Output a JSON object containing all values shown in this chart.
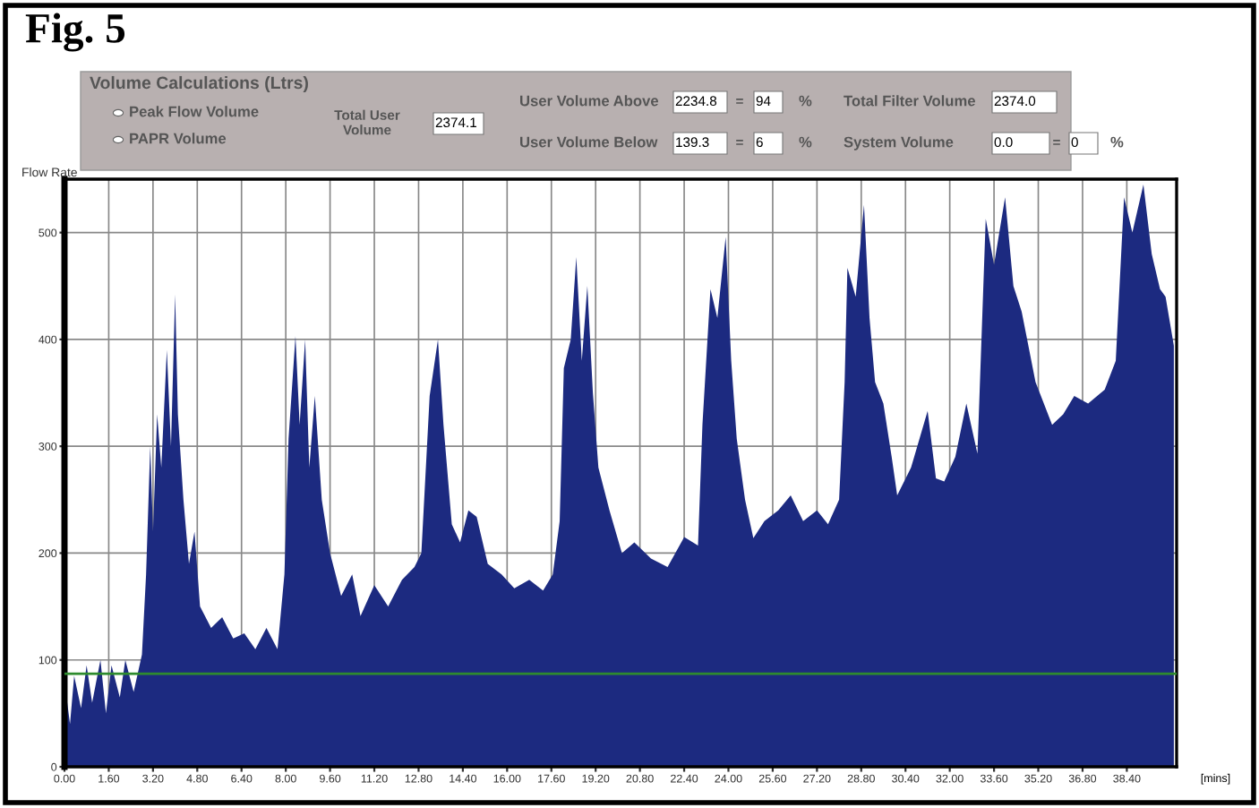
{
  "chart_data": {
    "type": "area",
    "title": "Fig. 5",
    "xlabel": "[mins]",
    "annotations": [
      "Flow Rate",
      "Volume Calculations (Ltrs)",
      "Peak Flow Volume",
      "PAPR Volume",
      "Total User Volume",
      "2374.1",
      "User Volume Above",
      "2234.8",
      "=",
      "94",
      "%",
      "User Volume Below",
      "139.3",
      "=",
      "6",
      "%",
      "Total Filter Volume",
      "2374.0",
      "System Volume",
      "0.0",
      "=",
      "0",
      "%"
    ],
    "series": [
      {
        "color": "#1c2a80",
        "x": [
          0.0,
          0.2,
          0.35,
          0.6,
          0.8,
          1.0,
          1.3,
          1.5,
          1.7,
          2.0,
          2.2,
          2.5,
          2.8,
          2.95,
          3.1,
          3.2,
          3.35,
          3.5,
          3.7,
          3.85,
          4.0,
          4.1,
          4.3,
          4.5,
          4.7,
          4.9,
          5.3,
          5.7,
          6.1,
          6.5,
          6.9,
          7.3,
          7.7,
          7.95,
          8.1,
          8.35,
          8.5,
          8.7,
          8.85,
          9.05,
          9.3,
          9.6,
          10.0,
          10.4,
          10.7,
          11.2,
          11.7,
          12.2,
          12.65,
          12.9,
          13.2,
          13.5,
          13.7,
          14.0,
          14.3,
          14.6,
          14.9,
          15.3,
          15.8,
          16.26,
          16.8,
          17.3,
          17.65,
          17.9,
          18.05,
          18.3,
          18.5,
          18.7,
          18.9,
          19.1,
          19.3,
          19.7,
          20.15,
          20.6,
          21.2,
          21.8,
          22.4,
          22.9,
          23.06,
          23.35,
          23.6,
          23.9,
          24.1,
          24.3,
          24.6,
          24.9,
          25.3,
          25.8,
          26.25,
          26.7,
          27.2,
          27.6,
          28.0,
          28.2,
          28.3,
          28.6,
          28.9,
          29.1,
          29.3,
          29.6,
          29.9,
          30.1,
          30.6,
          31.2,
          31.5,
          31.8,
          32.2,
          32.6,
          33.0,
          33.3,
          33.6,
          34.0,
          34.3,
          34.6,
          35.1,
          35.7,
          36.1,
          36.5,
          37.0,
          37.6,
          38.0,
          38.3,
          38.6,
          39.0,
          39.3,
          39.6,
          39.8,
          40.1
        ],
        "values": [
          80,
          40,
          85,
          55,
          95,
          60,
          100,
          50,
          95,
          65,
          100,
          70,
          105,
          180,
          300,
          220,
          330,
          280,
          390,
          300,
          442,
          330,
          250,
          190,
          220,
          150,
          130,
          140,
          120,
          125,
          110,
          130,
          110,
          180,
          307,
          403,
          320,
          400,
          280,
          347,
          250,
          200,
          160,
          180,
          141,
          170,
          150,
          175,
          187,
          200,
          347,
          400,
          320,
          227,
          210,
          240,
          234,
          190,
          180,
          167,
          175,
          165,
          180,
          230,
          373,
          400,
          477,
          380,
          450,
          350,
          280,
          240,
          200,
          210,
          195,
          187,
          215,
          207,
          320,
          447,
          420,
          496,
          380,
          307,
          250,
          214,
          230,
          240,
          254,
          230,
          240,
          227,
          250,
          360,
          467,
          440,
          526,
          420,
          360,
          340,
          290,
          254,
          280,
          333,
          270,
          267,
          290,
          340,
          293,
          513,
          470,
          533,
          450,
          426,
          360,
          320,
          330,
          347,
          340,
          353,
          380,
          533,
          500,
          545,
          480,
          447,
          440,
          394
        ]
      }
    ],
    "xlim": [
      0,
      40.2
    ],
    "ylim": [
      0,
      550
    ],
    "xticks": [
      {
        "value": 0,
        "label": "0.00"
      },
      {
        "value": 1.6,
        "label": "1.60"
      },
      {
        "value": 3.2,
        "label": "3.20"
      },
      {
        "value": 4.8,
        "label": "4.80"
      },
      {
        "value": 6.4,
        "label": "6.40"
      },
      {
        "value": 8.0,
        "label": "8.00"
      },
      {
        "value": 9.6,
        "label": "9.60"
      },
      {
        "value": 11.2,
        "label": "11.20"
      },
      {
        "value": 12.8,
        "label": "12.80"
      },
      {
        "value": 14.4,
        "label": "14.40"
      },
      {
        "value": 16.0,
        "label": "16.00"
      },
      {
        "value": 17.6,
        "label": "17.60"
      },
      {
        "value": 19.2,
        "label": "19.20"
      },
      {
        "value": 20.8,
        "label": "20.80"
      },
      {
        "value": 22.4,
        "label": "22.40"
      },
      {
        "value": 24.0,
        "label": "24.00"
      },
      {
        "value": 25.6,
        "label": "25.60"
      },
      {
        "value": 27.2,
        "label": "27.20"
      },
      {
        "value": 28.8,
        "label": "28.80"
      },
      {
        "value": 30.4,
        "label": "30.40"
      },
      {
        "value": 32.0,
        "label": "32.00"
      },
      {
        "value": 33.6,
        "label": "33.60"
      },
      {
        "value": 35.2,
        "label": "35.20"
      },
      {
        "value": 36.8,
        "label": "36.80"
      },
      {
        "value": 38.4,
        "label": "38.40"
      }
    ],
    "yticks": [
      0,
      100,
      200,
      300,
      400,
      500
    ],
    "ref_lines": [
      {
        "axis": "y",
        "value": 87,
        "color": "#2e8b2e"
      }
    ],
    "grid": true,
    "legend": false
  }
}
